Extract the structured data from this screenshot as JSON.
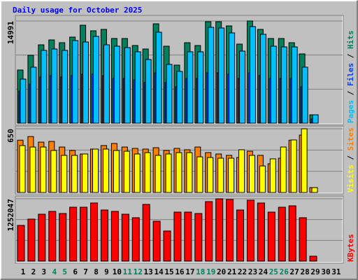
{
  "chart_data": [
    {
      "type": "bar",
      "title": "Daily usage for October 2025",
      "title_color": "#0000ff",
      "legend_separator": " / ",
      "ylim": [
        0,
        14991
      ],
      "yticks": [
        14991
      ],
      "series": [
        {
          "name": "Hits",
          "color": "#00805c",
          "values": [
            7804,
            9960,
            11500,
            12219,
            11808,
            12630,
            14375,
            13554,
            13759,
            12424,
            12424,
            11397,
            10884,
            14580,
            11295,
            8522,
            11808,
            11397,
            14888,
            14888,
            14273,
            11603,
            14991,
            13759,
            12424,
            12424,
            11808,
            10165,
            1232,
            null,
            null
          ]
        },
        {
          "name": "Files",
          "color": "#0040ff",
          "values": [
            4724,
            5751,
            6777,
            6983,
            6777,
            6983,
            7188,
            7188,
            6983,
            6572,
            6572,
            6367,
            5956,
            7393,
            5956,
            5340,
            6572,
            6572,
            7393,
            7393,
            7188,
            6572,
            7393,
            6983,
            6572,
            6572,
            6572,
            5340,
            616,
            null,
            null
          ]
        },
        {
          "name": "Pages",
          "color": "#00c0ff",
          "values": [
            6470,
            8216,
            10680,
            10884,
            10680,
            12117,
            11911,
            12733,
            11500,
            11295,
            11089,
            10474,
            9344,
            13349,
            8626,
            7599,
            10474,
            10474,
            14068,
            13965,
            13246,
            10576,
            14170,
            13041,
            11295,
            11192,
            11192,
            8216,
            1232,
            null,
            null
          ]
        }
      ]
    },
    {
      "type": "bar",
      "ylim": [
        0,
        650
      ],
      "yticks": [
        650
      ],
      "series": [
        {
          "name": "Sites",
          "color": "#ff8000",
          "values": [
            534,
            571,
            514,
            521,
            464,
            429,
            393,
            443,
            479,
            500,
            464,
            450,
            443,
            457,
            429,
            450,
            436,
            464,
            407,
            393,
            379,
            357,
            421,
            379,
            293,
            350,
            534,
            586,
            50,
            null,
            null
          ]
        },
        {
          "name": "Visits",
          "color": "#ffff00",
          "values": [
            479,
            464,
            464,
            429,
            379,
            379,
            393,
            443,
            443,
            429,
            421,
            393,
            407,
            379,
            393,
            407,
            407,
            364,
            357,
            350,
            350,
            436,
            379,
            271,
            343,
            464,
            536,
            650,
            50,
            null,
            null
          ]
        }
      ]
    },
    {
      "type": "bar",
      "ylim": [
        0,
        1252047
      ],
      "yticks": [
        1252047
      ],
      "categories": [
        "1",
        "2",
        "3",
        "4",
        "5",
        "6",
        "7",
        "8",
        "9",
        "10",
        "11",
        "12",
        "13",
        "14",
        "15",
        "16",
        "17",
        "18",
        "19",
        "20",
        "21",
        "22",
        "23",
        "24",
        "25",
        "26",
        "27",
        "28",
        "29",
        "30",
        "31"
      ],
      "category_colors": [
        "#000000",
        "#000000",
        "#000000",
        "#00805c",
        "#00805c",
        "#000000",
        "#000000",
        "#000000",
        "#000000",
        "#000000",
        "#00805c",
        "#00805c",
        "#000000",
        "#000000",
        "#000000",
        "#000000",
        "#000000",
        "#00805c",
        "#00805c",
        "#000000",
        "#000000",
        "#000000",
        "#000000",
        "#000000",
        "#00805c",
        "#00805c",
        "#000000",
        "#000000",
        "#000000",
        "#000000",
        "#000000"
      ],
      "series": [
        {
          "name": "KBytes",
          "color": "#ff0000",
          "values": [
            717465,
            844077,
            942552,
            998823,
            956620,
            1083231,
            1083231,
            1167639,
            1026958,
            998823,
            942552,
            872212,
            1139503,
            801874,
            604921,
            984756,
            984756,
            956620,
            1195775,
            1252047,
            1237979,
            1026958,
            1223911,
            1167639,
            984756,
            1083231,
            1111367,
            872212,
            98476,
            null,
            null
          ]
        }
      ]
    }
  ]
}
